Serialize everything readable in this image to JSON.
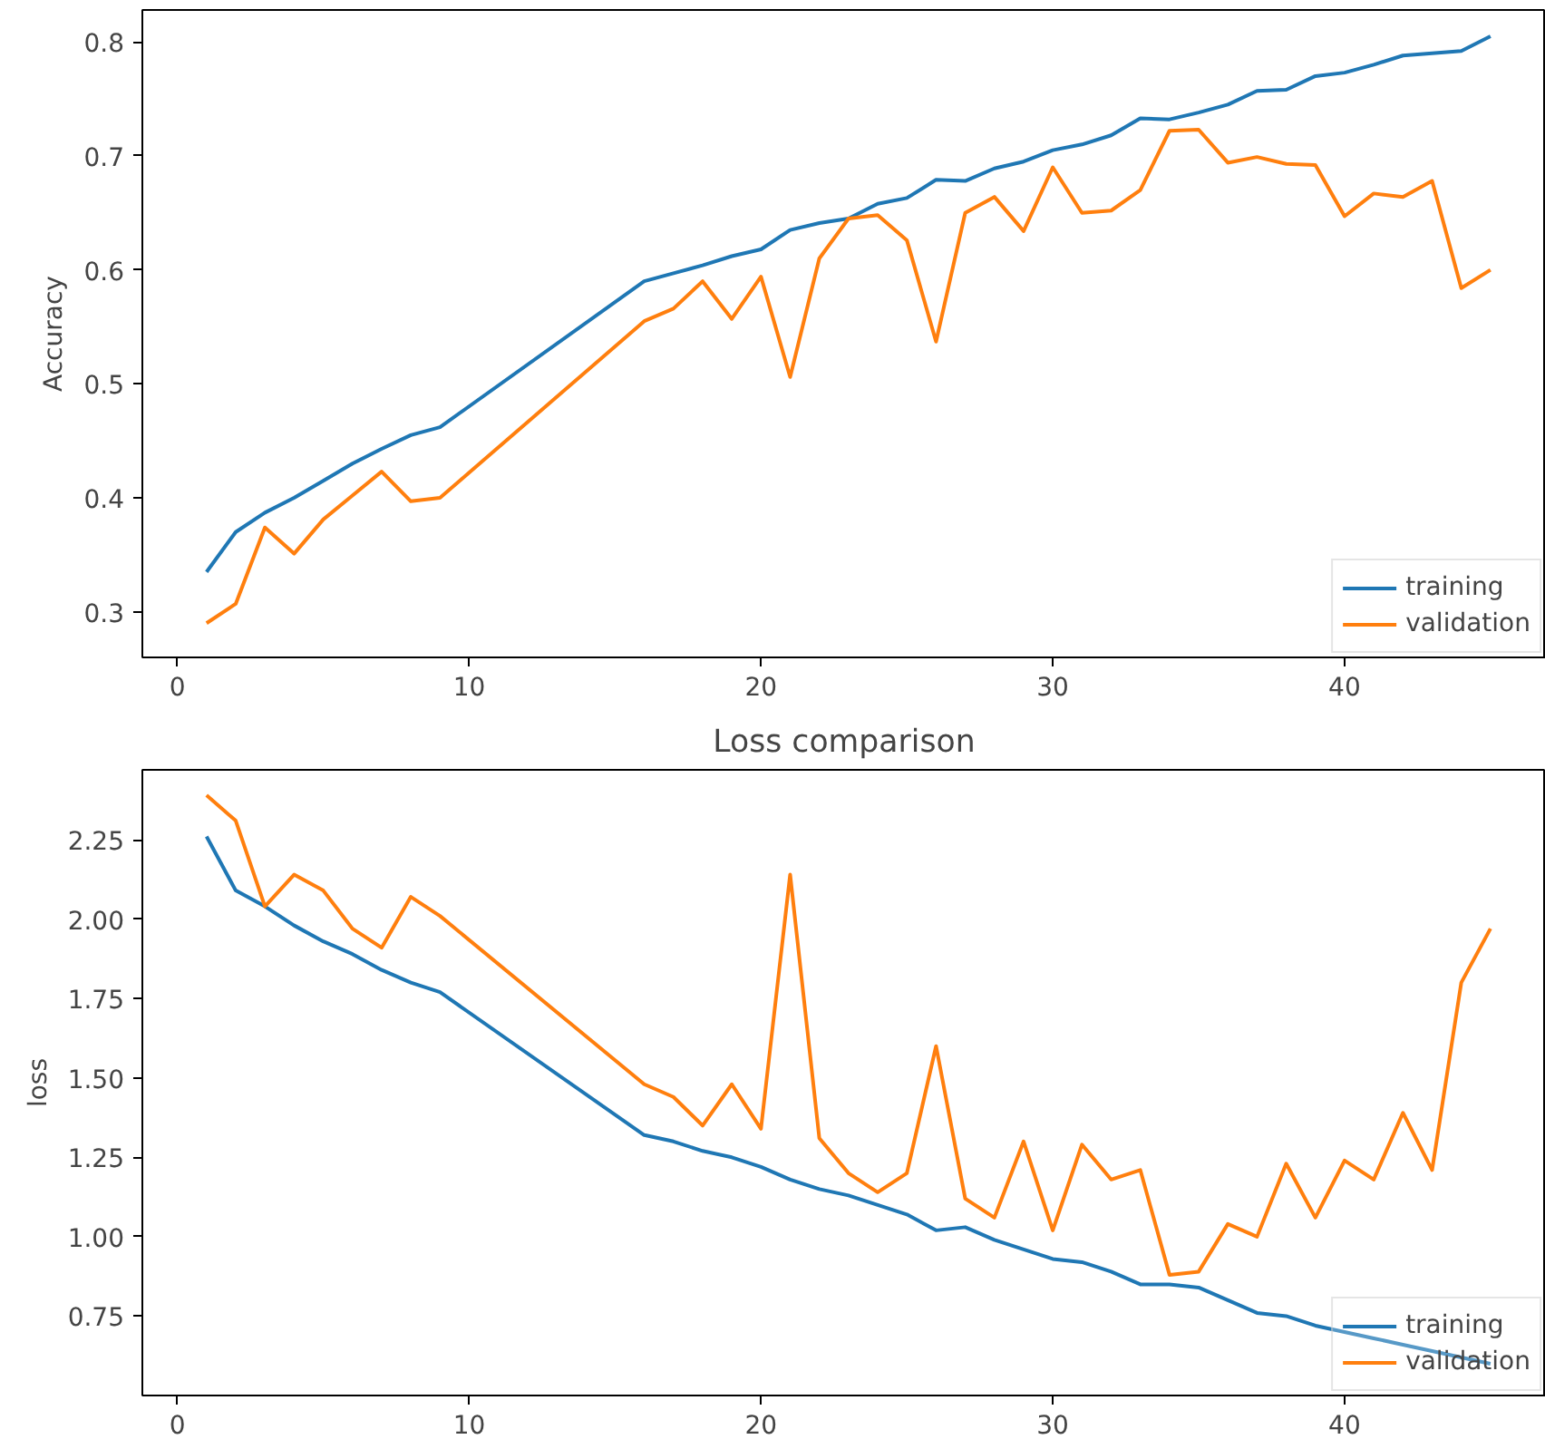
{
  "chart_data": [
    {
      "type": "line",
      "ylabel": "Accuracy",
      "x": [
        1,
        2,
        3,
        4,
        5,
        6,
        7,
        8,
        9,
        16,
        17,
        18,
        19,
        20,
        21,
        22,
        23,
        24,
        25,
        26,
        27,
        28,
        29,
        30,
        31,
        32,
        33,
        34,
        35,
        36,
        37,
        38,
        39,
        40,
        41,
        42,
        43,
        44,
        45
      ],
      "xlim": [
        -1.2,
        46.9
      ],
      "xticks": [
        0,
        10,
        20,
        30,
        40
      ],
      "ylim": [
        0.26,
        0.828
      ],
      "yticks": [
        0.3,
        0.4,
        0.5,
        0.6,
        0.7,
        0.8
      ],
      "grid": false,
      "legend": "bottom right",
      "series": [
        {
          "name": "training",
          "color": "#1f77b4",
          "values": [
            0.335,
            0.37,
            0.387,
            0.4,
            0.415,
            0.43,
            0.443,
            0.455,
            0.462,
            0.59,
            0.597,
            0.604,
            0.612,
            0.618,
            0.635,
            0.641,
            0.645,
            0.658,
            0.663,
            0.679,
            0.678,
            0.689,
            0.695,
            0.705,
            0.71,
            0.718,
            0.733,
            0.732,
            0.738,
            0.745,
            0.757,
            0.758,
            0.77,
            0.773,
            0.78,
            0.788,
            0.79,
            0.792,
            0.805
          ]
        },
        {
          "name": "validation",
          "color": "#ff7f0e",
          "values": [
            0.29,
            0.307,
            0.374,
            0.351,
            0.381,
            0.402,
            0.423,
            0.397,
            0.4,
            0.555,
            0.566,
            0.59,
            0.557,
            0.594,
            0.506,
            0.61,
            0.645,
            0.648,
            0.626,
            0.537,
            0.65,
            0.664,
            0.634,
            0.69,
            0.65,
            0.652,
            0.67,
            0.722,
            0.723,
            0.694,
            0.699,
            0.693,
            0.692,
            0.647,
            0.667,
            0.664,
            0.678,
            0.584,
            0.6
          ]
        }
      ]
    },
    {
      "type": "line",
      "title": "Loss comparison",
      "ylabel": "loss",
      "x": [
        1,
        2,
        3,
        4,
        5,
        6,
        7,
        8,
        9,
        16,
        17,
        18,
        19,
        20,
        21,
        22,
        23,
        24,
        25,
        26,
        27,
        28,
        29,
        30,
        31,
        32,
        33,
        34,
        35,
        36,
        37,
        38,
        39,
        40,
        41,
        42,
        43,
        44,
        45
      ],
      "xlim": [
        -1.2,
        46.9
      ],
      "xticks": [
        0,
        10,
        20,
        30,
        40
      ],
      "ylim": [
        0.5,
        2.47
      ],
      "yticks": [
        {
          "value": 0.75,
          "label": "0.75"
        },
        {
          "value": 1.0,
          "label": "1.00"
        },
        {
          "value": 1.25,
          "label": "1.25"
        },
        {
          "value": 1.5,
          "label": "1.50"
        },
        {
          "value": 1.75,
          "label": "1.75"
        },
        {
          "value": 2.0,
          "label": "2.00"
        },
        {
          "value": 2.25,
          "label": "2.25"
        }
      ],
      "grid": false,
      "legend": "bottom right",
      "series": [
        {
          "name": "training",
          "color": "#1f77b4",
          "values": [
            2.26,
            2.09,
            2.04,
            1.98,
            1.93,
            1.89,
            1.84,
            1.8,
            1.77,
            1.32,
            1.3,
            1.27,
            1.25,
            1.22,
            1.18,
            1.15,
            1.13,
            1.1,
            1.07,
            1.02,
            1.03,
            0.99,
            0.96,
            0.93,
            0.92,
            0.89,
            0.85,
            0.85,
            0.84,
            0.8,
            0.76,
            0.75,
            0.72,
            0.7,
            0.68,
            0.66,
            0.64,
            0.62,
            0.6
          ]
        },
        {
          "name": "validation",
          "color": "#ff7f0e",
          "values": [
            2.39,
            2.31,
            2.04,
            2.14,
            2.09,
            1.97,
            1.91,
            2.07,
            2.01,
            1.48,
            1.44,
            1.35,
            1.48,
            1.34,
            2.14,
            1.31,
            1.2,
            1.14,
            1.2,
            1.6,
            1.12,
            1.06,
            1.3,
            1.02,
            1.29,
            1.18,
            1.21,
            0.88,
            0.89,
            1.04,
            1.0,
            1.23,
            1.06,
            1.24,
            1.18,
            1.39,
            1.21,
            1.8,
            1.97
          ]
        }
      ]
    }
  ]
}
